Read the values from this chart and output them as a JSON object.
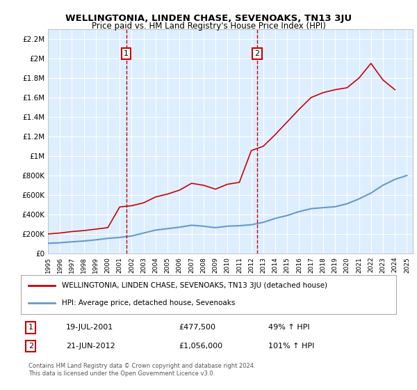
{
  "title": "WELLINGTONIA, LINDEN CHASE, SEVENOAKS, TN13 3JU",
  "subtitle": "Price paid vs. HM Land Registry's House Price Index (HPI)",
  "legend_line1": "WELLINGTONIA, LINDEN CHASE, SEVENOAKS, TN13 3JU (detached house)",
  "legend_line2": "HPI: Average price, detached house, Sevenoaks",
  "annotation1_date": "19-JUL-2001",
  "annotation1_price": "£477,500",
  "annotation1_hpi": "49% ↑ HPI",
  "annotation2_date": "21-JUN-2012",
  "annotation2_price": "£1,056,000",
  "annotation2_hpi": "101% ↑ HPI",
  "footer": "Contains HM Land Registry data © Crown copyright and database right 2024.\nThis data is licensed under the Open Government Licence v3.0.",
  "red_color": "#cc0000",
  "blue_color": "#6699cc",
  "background_color": "#ddeeff",
  "plot_bg": "#ffffff",
  "ylim": [
    0,
    2300000
  ],
  "xlim_start": 1995.0,
  "xlim_end": 2025.5,
  "vline1_x": 2001.54,
  "vline2_x": 2012.47,
  "hpi_years": [
    1995,
    1996,
    1997,
    1998,
    1999,
    2000,
    2001,
    2002,
    2003,
    2004,
    2005,
    2006,
    2007,
    2008,
    2009,
    2010,
    2011,
    2012,
    2013,
    2014,
    2015,
    2016,
    2017,
    2018,
    2019,
    2020,
    2021,
    2022,
    2023,
    2024,
    2025
  ],
  "hpi_values": [
    105000,
    110000,
    120000,
    128000,
    140000,
    155000,
    165000,
    180000,
    210000,
    240000,
    255000,
    270000,
    290000,
    280000,
    265000,
    280000,
    285000,
    295000,
    320000,
    360000,
    390000,
    430000,
    460000,
    470000,
    480000,
    510000,
    560000,
    620000,
    700000,
    760000,
    800000
  ],
  "red_years": [
    1995,
    1996,
    1997,
    1998,
    1999,
    2000,
    2001,
    2002,
    2003,
    2004,
    2005,
    2006,
    2007,
    2008,
    2009,
    2010,
    2011,
    2012,
    2013,
    2014,
    2015,
    2016,
    2017,
    2018,
    2019,
    2020,
    2021,
    2022,
    2023,
    2024
  ],
  "red_values": [
    200000,
    210000,
    225000,
    235000,
    250000,
    265000,
    477500,
    490000,
    520000,
    580000,
    610000,
    650000,
    720000,
    700000,
    660000,
    710000,
    730000,
    1056000,
    1100000,
    1220000,
    1350000,
    1480000,
    1600000,
    1650000,
    1680000,
    1700000,
    1800000,
    1950000,
    1780000,
    1680000
  ]
}
